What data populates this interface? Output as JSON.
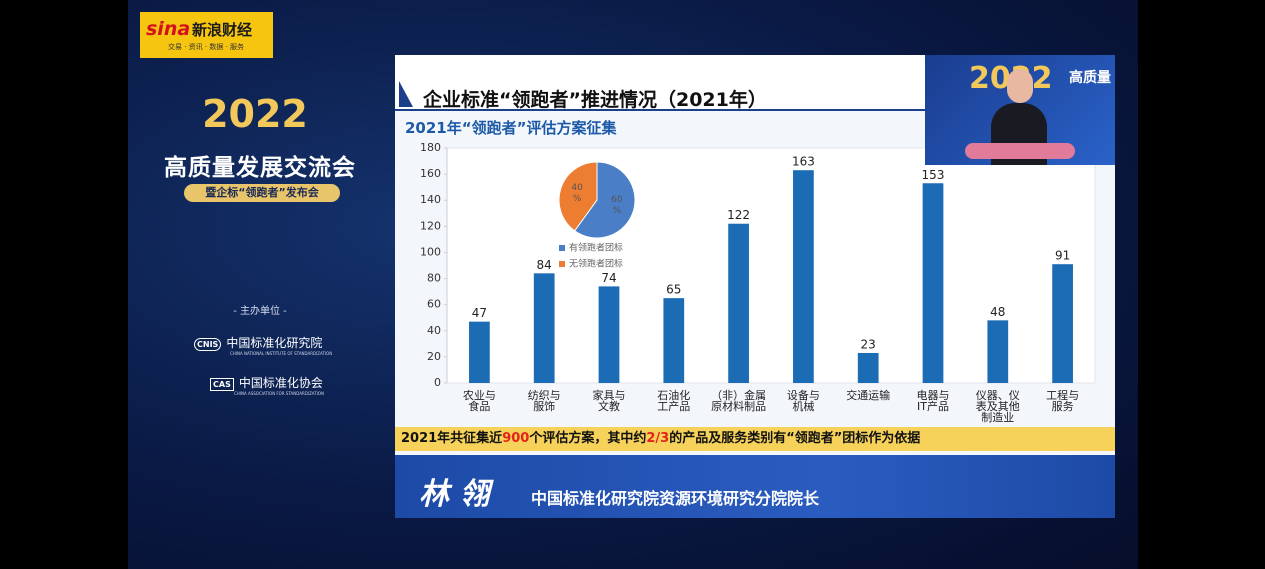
{
  "header": {
    "brand": "新浪财经",
    "brand_tagline": "交易 · 资讯 · 数据 · 服务",
    "logo": "sina"
  },
  "event": {
    "year": "2022",
    "title": "高质量发展交流会",
    "subtitle": "暨企标“领跑者”发布会",
    "host_label": "- 主办单位 -",
    "hosts": [
      {
        "name": "中国标准化研究院",
        "english": "CHINA NATIONAL INSTITUTE OF STANDARDIZATION",
        "badge": "CNIS"
      },
      {
        "name": "中国标准化协会",
        "english": "CHINA ASSOCIATION FOR STANDARDIZATION",
        "badge": "CAS"
      }
    ]
  },
  "inset": {
    "year": "2022",
    "title": "高质量"
  },
  "slide": {
    "title": "企业标准“领跑者”推进情况（2021年）",
    "subtitle": "2021年“领跑者”评估方案征集",
    "footnote": {
      "parts": [
        "2021年共征集近",
        "900",
        "个评估方案，其中约",
        "2/3",
        "的产品及服务类别有“领跑者”团标作为依据"
      ],
      "highlight_color": "#e3241b"
    }
  },
  "speaker": {
    "name": "林 翎",
    "position": "中国标准化研究院资源环境研究分院院长"
  },
  "chart_data": [
    {
      "type": "bar",
      "categories": [
        "农业与\n食品",
        "纺织与\n服饰",
        "家具与\n文教",
        "石油化\n工产品",
        "（非）金属\n原材料制品",
        "设备与\n机械",
        "交通运输",
        "电器与\nIT产品",
        "仪器、仪\n表及其他\n制造业",
        "工程与\n服务"
      ],
      "values": [
        47,
        84,
        74,
        65,
        122,
        163,
        23,
        153,
        48,
        91
      ],
      "color": "#1c6cb5",
      "ylim": [
        0,
        180
      ],
      "yticks": [
        0,
        20,
        40,
        60,
        80,
        100,
        120,
        140,
        160,
        180
      ],
      "grid": false
    },
    {
      "type": "pie",
      "categories": [
        "有领跑者团标",
        "无领跑者团标"
      ],
      "values": [
        60,
        40
      ],
      "value_labels": [
        "60 %",
        "40 %"
      ],
      "colors": [
        "#4a7ec6",
        "#ed7d31"
      ],
      "legend": "bottom"
    }
  ]
}
